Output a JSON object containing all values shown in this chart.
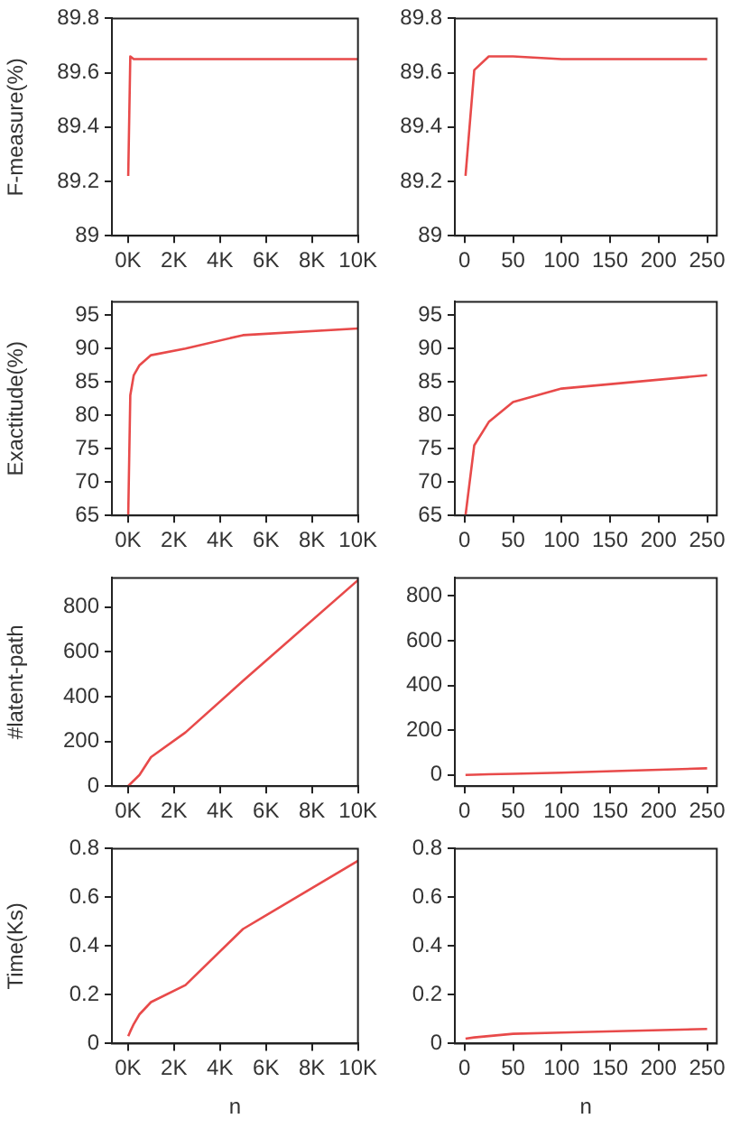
{
  "chart_data": [
    {
      "type": "line",
      "ylabel": "F-measure(%)",
      "x": [
        10,
        100,
        250,
        500,
        1000,
        2500,
        5000,
        10000
      ],
      "values": [
        89.22,
        89.66,
        89.65,
        89.65,
        89.65,
        89.65,
        89.65,
        89.65
      ],
      "color": "#e84a4a",
      "xlim": [
        -700,
        10000
      ],
      "xticks": [
        {
          "value": 0,
          "label": "0K"
        },
        {
          "value": 2000,
          "label": "2K"
        },
        {
          "value": 4000,
          "label": "4K"
        },
        {
          "value": 6000,
          "label": "6K"
        },
        {
          "value": 8000,
          "label": "8K"
        },
        {
          "value": 10000,
          "label": "10K"
        }
      ],
      "ylim": [
        89,
        89.8
      ],
      "yticks": [
        89,
        89.2,
        89.4,
        89.6,
        89.8
      ]
    },
    {
      "type": "line",
      "x": [
        1,
        10,
        25,
        50,
        100,
        250
      ],
      "values": [
        89.22,
        89.61,
        89.66,
        89.66,
        89.65,
        89.65
      ],
      "color": "#e84a4a",
      "xlim": [
        -10,
        260
      ],
      "xticks": [
        0,
        50,
        100,
        150,
        200,
        250
      ],
      "ylim": [
        89,
        89.8
      ],
      "yticks": [
        89,
        89.2,
        89.4,
        89.6,
        89.8
      ]
    },
    {
      "type": "line",
      "ylabel": "Exactitude(%)",
      "x": [
        10,
        100,
        250,
        500,
        1000,
        2500,
        5000,
        10000
      ],
      "values": [
        65,
        83,
        86,
        87.5,
        89,
        90,
        92,
        93
      ],
      "color": "#e84a4a",
      "xlim": [
        -700,
        10000
      ],
      "xticks": [
        {
          "value": 0,
          "label": "0K"
        },
        {
          "value": 2000,
          "label": "2K"
        },
        {
          "value": 4000,
          "label": "4K"
        },
        {
          "value": 6000,
          "label": "6K"
        },
        {
          "value": 8000,
          "label": "8K"
        },
        {
          "value": 10000,
          "label": "10K"
        }
      ],
      "ylim": [
        65,
        97
      ],
      "yticks": [
        65,
        70,
        75,
        80,
        85,
        90,
        95
      ]
    },
    {
      "type": "line",
      "x": [
        1,
        10,
        25,
        50,
        100,
        250
      ],
      "values": [
        65,
        75.5,
        79,
        82,
        84,
        86
      ],
      "color": "#e84a4a",
      "xlim": [
        -10,
        260
      ],
      "xticks": [
        0,
        50,
        100,
        150,
        200,
        250
      ],
      "ylim": [
        65,
        97
      ],
      "yticks": [
        65,
        70,
        75,
        80,
        85,
        90,
        95
      ]
    },
    {
      "type": "line",
      "ylabel": "#latent-path",
      "x": [
        10,
        100,
        250,
        500,
        1000,
        2500,
        5000,
        10000
      ],
      "values": [
        1,
        10,
        25,
        50,
        130,
        240,
        470,
        920
      ],
      "color": "#e84a4a",
      "xlim": [
        -700,
        10000
      ],
      "xticks": [
        {
          "value": 0,
          "label": "0K"
        },
        {
          "value": 2000,
          "label": "2K"
        },
        {
          "value": 4000,
          "label": "4K"
        },
        {
          "value": 6000,
          "label": "6K"
        },
        {
          "value": 8000,
          "label": "8K"
        },
        {
          "value": 10000,
          "label": "10K"
        }
      ],
      "ylim": [
        0,
        930
      ],
      "yticks": [
        0,
        200,
        400,
        600,
        800
      ]
    },
    {
      "type": "line",
      "x": [
        1,
        10,
        25,
        50,
        100,
        250
      ],
      "values": [
        0,
        1,
        3,
        5,
        10,
        30
      ],
      "color": "#e84a4a",
      "xlim": [
        -10,
        260
      ],
      "xticks": [
        0,
        50,
        100,
        150,
        200,
        250
      ],
      "ylim": [
        -50,
        880
      ],
      "yticks": [
        0,
        200,
        400,
        600,
        800
      ]
    },
    {
      "type": "line",
      "ylabel": "Time(Ks)",
      "xlabel": "n",
      "x": [
        10,
        100,
        250,
        500,
        1000,
        2500,
        5000,
        10000
      ],
      "values": [
        0.03,
        0.05,
        0.08,
        0.12,
        0.17,
        0.24,
        0.47,
        0.75
      ],
      "color": "#e84a4a",
      "xlim": [
        -700,
        10000
      ],
      "xticks": [
        {
          "value": 0,
          "label": "0K"
        },
        {
          "value": 2000,
          "label": "2K"
        },
        {
          "value": 4000,
          "label": "4K"
        },
        {
          "value": 6000,
          "label": "6K"
        },
        {
          "value": 8000,
          "label": "8K"
        },
        {
          "value": 10000,
          "label": "10K"
        }
      ],
      "ylim": [
        0,
        0.8
      ],
      "yticks": [
        0,
        0.2,
        0.4,
        0.6,
        0.8
      ]
    },
    {
      "type": "line",
      "xlabel": "n",
      "x": [
        1,
        10,
        50,
        100,
        250
      ],
      "values": [
        0.02,
        0.025,
        0.04,
        0.045,
        0.06
      ],
      "color": "#e84a4a",
      "xlim": [
        -10,
        260
      ],
      "xticks": [
        0,
        50,
        100,
        150,
        200,
        250
      ],
      "ylim": [
        0,
        0.8
      ],
      "yticks": [
        0,
        0.2,
        0.4,
        0.6,
        0.8
      ]
    }
  ]
}
